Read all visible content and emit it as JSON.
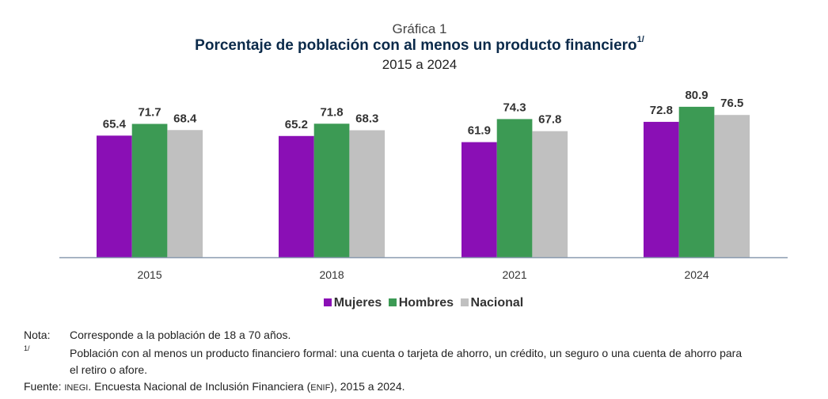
{
  "chart_data": {
    "type": "bar",
    "supertitle": "Gráfica 1",
    "title": "Porcentaje de población con al menos un producto financiero",
    "title_sup": "1/",
    "subtitle": "2015 a 2024",
    "categories": [
      "2015",
      "2018",
      "2021",
      "2024"
    ],
    "series": [
      {
        "name": "Mujeres",
        "color": "#8a0fb5",
        "values": [
          65.4,
          65.2,
          61.9,
          72.8
        ],
        "labels": [
          "65.4",
          "65.2",
          "61.9",
          "72.8"
        ]
      },
      {
        "name": "Hombres",
        "color": "#3c9a54",
        "values": [
          71.7,
          71.8,
          74.3,
          80.9
        ],
        "labels": [
          "71.7",
          "71.8",
          "74.3",
          "80.9"
        ]
      },
      {
        "name": "Nacional",
        "color": "#c0c0c0",
        "values": [
          68.4,
          68.3,
          67.8,
          76.5
        ],
        "labels": [
          "68.4",
          "68.3",
          "67.8",
          "76.5"
        ]
      }
    ],
    "ylim": [
      0,
      85
    ],
    "grid": false,
    "legend": "bottom-center"
  },
  "notes": {
    "nota_label": "Nota:",
    "nota_text": "Corresponde a la población de 18 a 70 años.",
    "fn_label": "1/",
    "fn_text_1": "Población con al menos un producto financiero formal: una cuenta o tarjeta de ahorro, un crédito, un seguro o una cuenta de ahorro para",
    "fn_text_2": "el retiro o afore.",
    "fuente_label": "Fuente:",
    "fuente_inegi": "INEGI",
    "fuente_text_1": ". Encuesta Nacional de Inclusión Financiera (",
    "fuente_enif": "ENIF",
    "fuente_text_2": "), 2015 a 2024."
  }
}
